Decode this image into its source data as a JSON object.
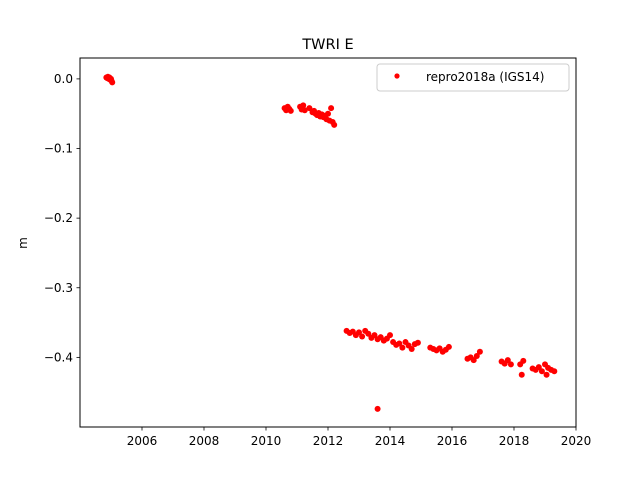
{
  "chart_data": {
    "type": "scatter",
    "title": "TWRI E",
    "xlabel": "",
    "ylabel": "m",
    "xlim": [
      2004.0,
      2020.0
    ],
    "ylim": [
      -0.5,
      0.03
    ],
    "x_ticks": [
      2006,
      2008,
      2010,
      2012,
      2014,
      2016,
      2018,
      2020
    ],
    "x_tick_labels": [
      "2006",
      "2008",
      "2010",
      "2012",
      "2014",
      "2016",
      "2018",
      "2020"
    ],
    "y_ticks": [
      0.0,
      -0.1,
      -0.2,
      -0.3,
      -0.4
    ],
    "y_tick_labels": [
      "0.0",
      "−0.1",
      "−0.2",
      "−0.3",
      "−0.4"
    ],
    "grid": false,
    "legend_position": "top-right",
    "series": [
      {
        "name": "repro2018a (IGS14)",
        "color": "#ff0000",
        "marker": "dot",
        "x": [
          2004.85,
          2004.88,
          2004.9,
          2004.93,
          2004.95,
          2004.97,
          2005.0,
          2005.02,
          2005.04,
          2010.6,
          2010.65,
          2010.7,
          2010.75,
          2010.8,
          2011.1,
          2011.15,
          2011.2,
          2011.25,
          2011.4,
          2011.5,
          2011.55,
          2011.6,
          2011.65,
          2011.7,
          2011.75,
          2011.8,
          2011.85,
          2011.9,
          2011.95,
          2012.0,
          2012.05,
          2012.1,
          2012.15,
          2012.2,
          2012.6,
          2012.7,
          2012.8,
          2012.9,
          2013.0,
          2013.1,
          2013.2,
          2013.3,
          2013.4,
          2013.5,
          2013.6,
          2013.7,
          2013.8,
          2013.9,
          2014.0,
          2014.1,
          2014.2,
          2014.3,
          2014.4,
          2014.5,
          2014.6,
          2014.7,
          2014.8,
          2014.9,
          2013.6,
          2015.3,
          2015.4,
          2015.5,
          2015.6,
          2015.7,
          2015.8,
          2015.9,
          2016.5,
          2016.6,
          2016.7,
          2016.8,
          2016.9,
          2017.6,
          2017.7,
          2017.8,
          2017.9,
          2018.2,
          2018.25,
          2018.3,
          2018.6,
          2018.7,
          2018.8,
          2018.9,
          2019.0,
          2019.05,
          2019.1,
          2019.2,
          2019.3
        ],
        "y": [
          0.002,
          0.001,
          0.003,
          0.0,
          0.002,
          -0.001,
          0.0,
          -0.003,
          -0.005,
          -0.042,
          -0.045,
          -0.04,
          -0.043,
          -0.046,
          -0.04,
          -0.044,
          -0.038,
          -0.045,
          -0.042,
          -0.048,
          -0.046,
          -0.05,
          -0.052,
          -0.049,
          -0.054,
          -0.051,
          -0.055,
          -0.053,
          -0.058,
          -0.05,
          -0.06,
          -0.042,
          -0.062,
          -0.066,
          -0.362,
          -0.365,
          -0.363,
          -0.368,
          -0.364,
          -0.37,
          -0.362,
          -0.366,
          -0.372,
          -0.368,
          -0.374,
          -0.371,
          -0.376,
          -0.373,
          -0.368,
          -0.378,
          -0.382,
          -0.38,
          -0.386,
          -0.378,
          -0.383,
          -0.388,
          -0.381,
          -0.379,
          -0.474,
          -0.386,
          -0.388,
          -0.39,
          -0.387,
          -0.392,
          -0.389,
          -0.385,
          -0.402,
          -0.4,
          -0.404,
          -0.398,
          -0.392,
          -0.406,
          -0.409,
          -0.404,
          -0.41,
          -0.41,
          -0.425,
          -0.405,
          -0.416,
          -0.418,
          -0.414,
          -0.42,
          -0.41,
          -0.425,
          -0.415,
          -0.418,
          -0.42
        ]
      }
    ]
  }
}
